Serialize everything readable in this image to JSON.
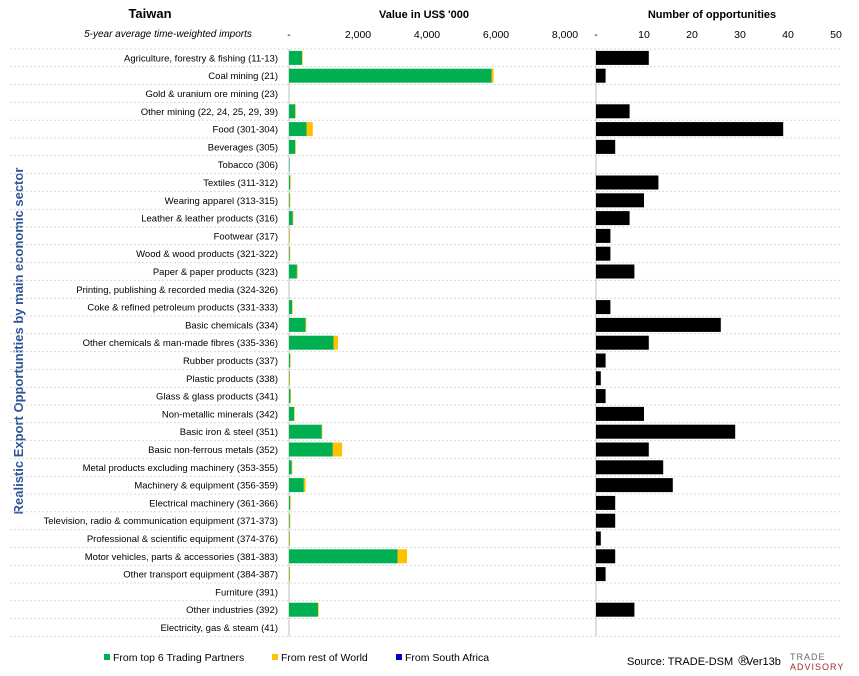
{
  "chart_data": {
    "type": "bar",
    "title": "Taiwan",
    "subtitle": "5-year average time-weighted imports",
    "ylabel": "Realistic Export Opportunities by main economic sector",
    "source": "Source: TRADE-DSM",
    "source_mark": "®",
    "version": "Ver13b",
    "logo_text": [
      "TRADE",
      "ADVISORY"
    ],
    "categories": [
      "Agriculture, forestry & fishing (11-13)",
      "Coal mining (21)",
      "Gold & uranium ore mining (23)",
      "Other mining (22, 24, 25, 29, 39)",
      "Food (301-304)",
      "Beverages (305)",
      "Tobacco (306)",
      "Textiles (311-312)",
      "Wearing apparel (313-315)",
      "Leather & leather products (316)",
      "Footwear (317)",
      "Wood & wood products (321-322)",
      "Paper & paper products (323)",
      "Printing, publishing & recorded media (324-326)",
      "Coke & refined petroleum products (331-333)",
      "Basic chemicals (334)",
      "Other chemicals & man-made fibres (335-336)",
      "Rubber products (337)",
      "Plastic products (338)",
      "Glass & glass products (341)",
      "Non-metallic minerals (342)",
      "Basic iron & steel (351)",
      "Basic non-ferrous metals (352)",
      "Metal products excluding machinery (353-355)",
      "Machinery & equipment (356-359)",
      "Electrical machinery (361-366)",
      "Television, radio & communication equipment (371-373)",
      "Professional & scientific equipment (374-376)",
      "Motor vehicles, parts & accessories (381-383)",
      "Other transport equipment (384-387)",
      "Furniture (391)",
      "Other industries (392)",
      "Electricity, gas & steam (41)"
    ],
    "value_chart": {
      "xlabel": "Value in US$ '000",
      "xlim": [
        0,
        8000
      ],
      "ticks": [
        0,
        2000,
        4000,
        6000,
        8000
      ],
      "tick_labels": [
        "-",
        "2,000",
        "4,000",
        "6,000",
        "8,000"
      ],
      "stacked": true,
      "series": [
        {
          "name": "From top 6 Trading Partners",
          "color": "#00b050",
          "values": [
            380,
            5870,
            0,
            180,
            510,
            180,
            10,
            30,
            20,
            110,
            5,
            20,
            230,
            0,
            90,
            480,
            1290,
            30,
            10,
            40,
            150,
            950,
            1270,
            80,
            430,
            30,
            20,
            10,
            3150,
            10,
            0,
            840,
            0
          ]
        },
        {
          "name": "From rest of World",
          "color": "#ffc000",
          "values": [
            10,
            60,
            0,
            10,
            180,
            10,
            0,
            20,
            20,
            10,
            5,
            10,
            20,
            0,
            10,
            10,
            130,
            10,
            5,
            10,
            10,
            10,
            270,
            10,
            50,
            20,
            20,
            10,
            270,
            10,
            0,
            20,
            0
          ]
        },
        {
          "name": "From South Africa",
          "color": "#0000cc",
          "values": [
            0,
            0,
            0,
            0,
            0,
            0,
            0,
            0,
            0,
            0,
            0,
            0,
            0,
            0,
            0,
            0,
            0,
            0,
            0,
            0,
            0,
            0,
            0,
            0,
            0,
            0,
            0,
            0,
            0,
            0,
            0,
            0,
            0
          ]
        }
      ]
    },
    "count_chart": {
      "xlabel": "Number of opportunities",
      "xlim": [
        0,
        50
      ],
      "ticks": [
        0,
        10,
        20,
        30,
        40,
        50
      ],
      "tick_labels": [
        "-",
        "10",
        "20",
        "30",
        "40",
        "50"
      ],
      "color": "#000000",
      "values": [
        11,
        2,
        0,
        7,
        39,
        4,
        0,
        13,
        10,
        7,
        3,
        3,
        8,
        0,
        3,
        26,
        11,
        2,
        1,
        2,
        10,
        29,
        11,
        14,
        16,
        4,
        4,
        1,
        4,
        2,
        0,
        8,
        0
      ]
    },
    "legend_position": "bottom-left",
    "grid": false
  }
}
